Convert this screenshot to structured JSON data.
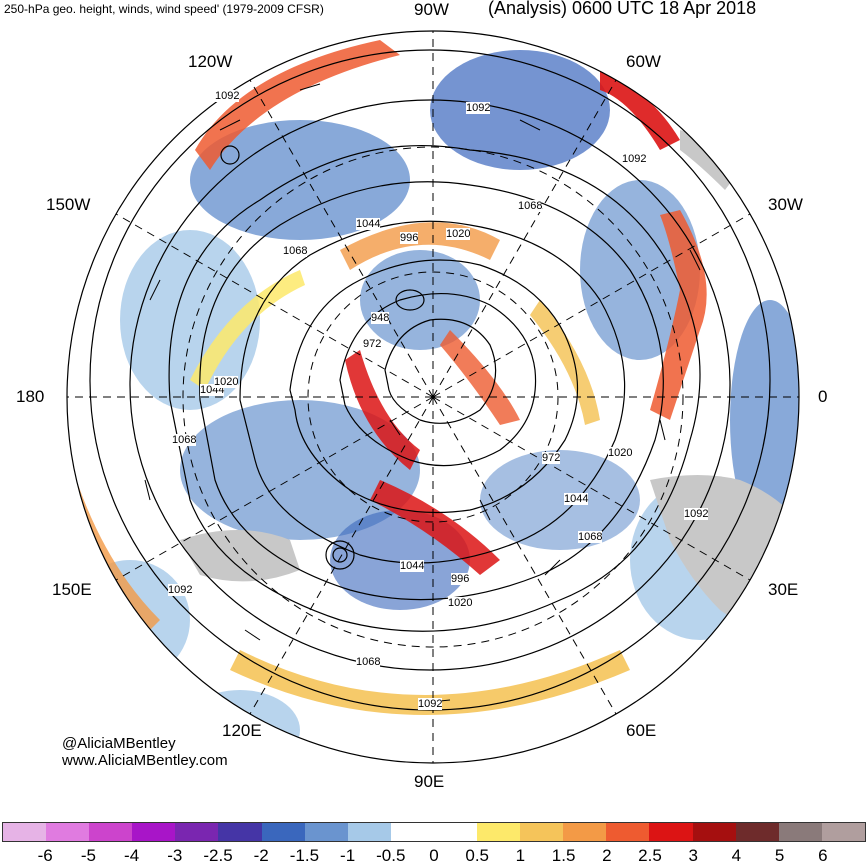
{
  "header": {
    "left_title": "250-hPa geo. height, winds, wind speed' (1979-2009 CFSR)",
    "right_title": "(Analysis) 0600 UTC 18 Apr 2018"
  },
  "longitude_labels": [
    "90W",
    "60W",
    "30W",
    "0",
    "30E",
    "60E",
    "90E",
    "120E",
    "150E",
    "180",
    "150W",
    "120W"
  ],
  "contour_labels": [
    "1092",
    "1068",
    "1044",
    "1020",
    "996",
    "972",
    "948"
  ],
  "credit": {
    "handle": "@AliciaMBentley",
    "website": "www.AliciaMBentley.com"
  },
  "colorbar": {
    "colors": [
      "#e6b3e6",
      "#e07be0",
      "#cc44cc",
      "#a815c8",
      "#7a26b0",
      "#4535a6",
      "#3a67bd",
      "#6a94cf",
      "#a6c9e8",
      "#ffffff",
      "#ffffff",
      "#fde96a",
      "#f5c45a",
      "#f39a46",
      "#ee5b30",
      "#dc1414",
      "#a50f0f",
      "#6e2b2b",
      "#8a7a7a",
      "#b09e9e"
    ],
    "tick_labels": [
      "-6",
      "-5",
      "-4",
      "-3",
      "-2.5",
      "-2",
      "-1.5",
      "-1",
      "-0.5",
      "0",
      "0.5",
      "1",
      "1.5",
      "2",
      "2.5",
      "3",
      "4",
      "5",
      "6"
    ]
  },
  "colors": {
    "land": "#c8c8c8",
    "contour": "#000000",
    "coast": "#555555"
  }
}
